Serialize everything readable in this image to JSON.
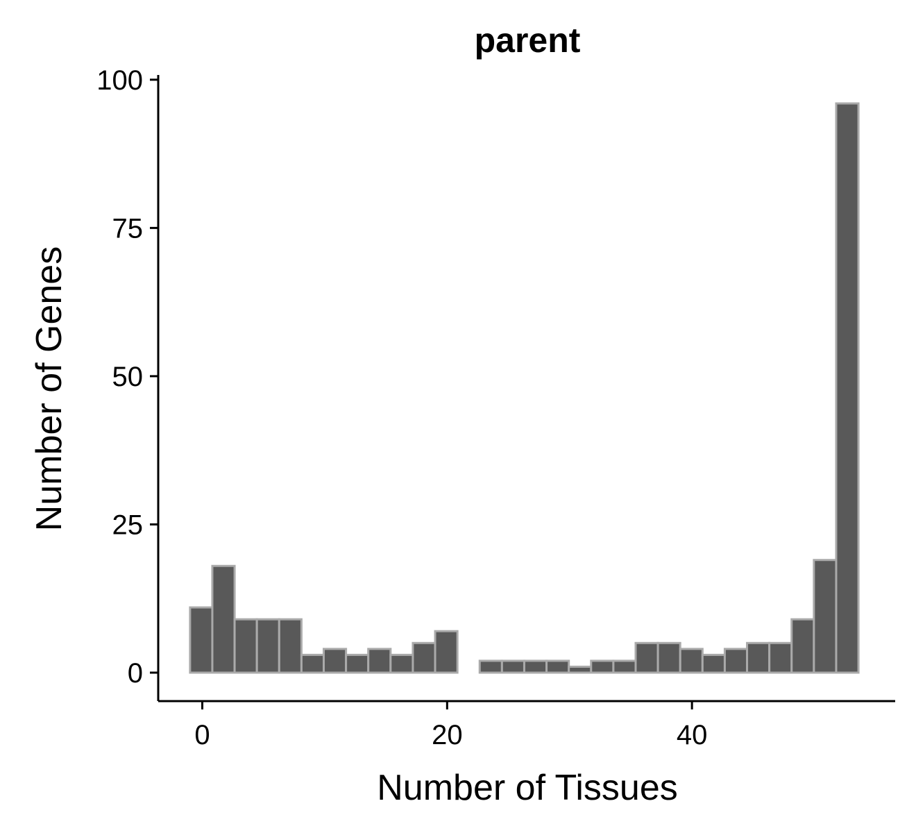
{
  "chart_data": {
    "type": "bar",
    "title": "parent",
    "xlabel": "Number of Tissues",
    "ylabel": "Number of Genes",
    "xlim": [
      -3.6,
      56.6
    ],
    "ylim": [
      -4.8,
      100.8
    ],
    "xticks": [
      0,
      20,
      40
    ],
    "yticks": [
      0,
      25,
      50,
      75,
      100
    ],
    "bin_width": 1.82,
    "bin_starts": [
      -1,
      0.82,
      2.64,
      4.46,
      6.28,
      8.1,
      9.92,
      11.74,
      13.56,
      15.38,
      17.2,
      19.02,
      20.84,
      22.66,
      24.48,
      26.3,
      28.12,
      29.94,
      31.76,
      33.58,
      35.4,
      37.22,
      39.04,
      40.86,
      42.68,
      44.5,
      46.32,
      48.14,
      49.96,
      51.78,
      53.6
    ],
    "values": [
      11,
      18,
      9,
      9,
      9,
      3,
      4,
      3,
      4,
      3,
      5,
      7,
      0,
      2,
      2,
      2,
      2,
      1,
      2,
      2,
      5,
      5,
      4,
      3,
      4,
      5,
      5,
      9,
      19,
      96
    ],
    "bar_color": "#595959",
    "edge_color": "#aaaaaa",
    "grid": false,
    "legend": "none"
  }
}
